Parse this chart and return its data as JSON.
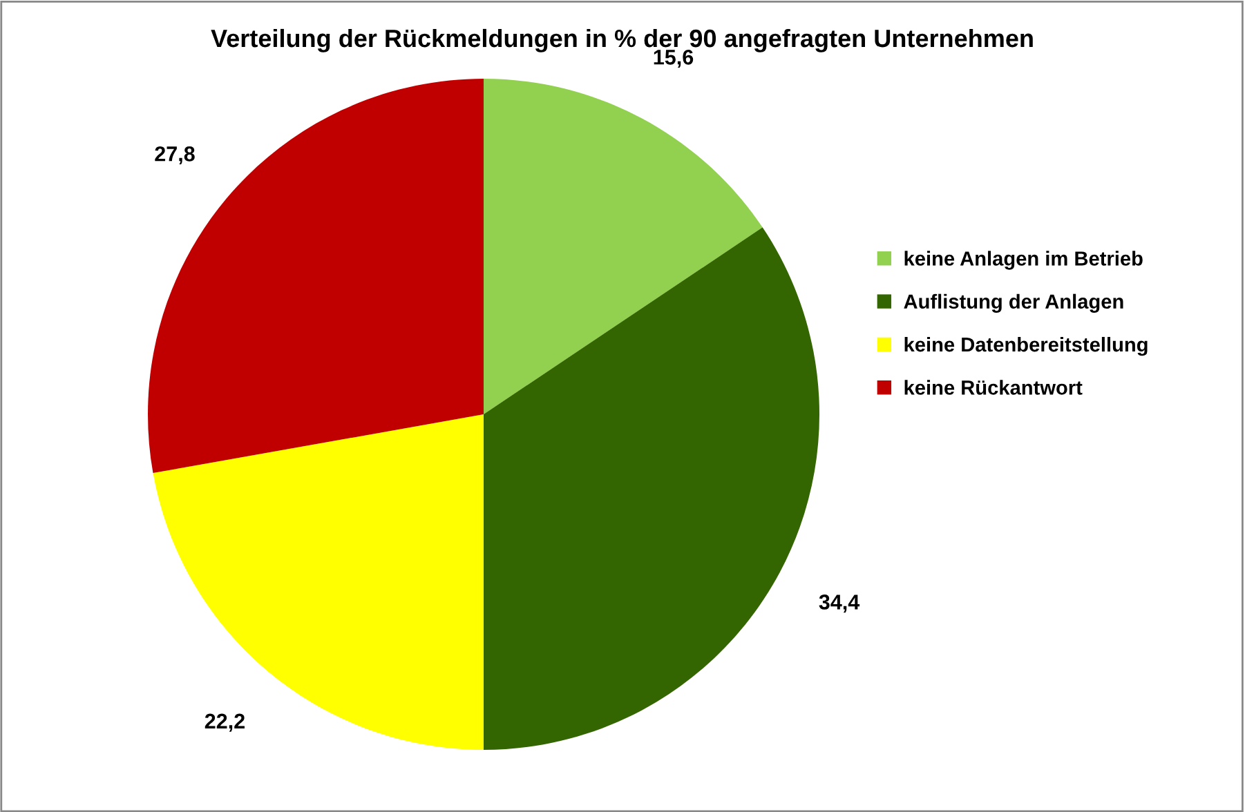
{
  "chart_data": {
    "type": "pie",
    "title": "Verteilung der Rückmeldungen in % der 90 angefragten Unternehmen",
    "categories": [
      "keine Anlagen im Betrieb",
      "Auflistung der Anlagen",
      "keine Datenbereitstellung",
      "keine Rückantwort"
    ],
    "values": [
      15.6,
      34.4,
      22.2,
      27.8
    ],
    "colors": [
      "#92d050",
      "#336600",
      "#ffff00",
      "#c00000"
    ],
    "value_labels": [
      "15,6",
      "34,4",
      "22,2",
      "27,8"
    ],
    "legend": "right"
  }
}
